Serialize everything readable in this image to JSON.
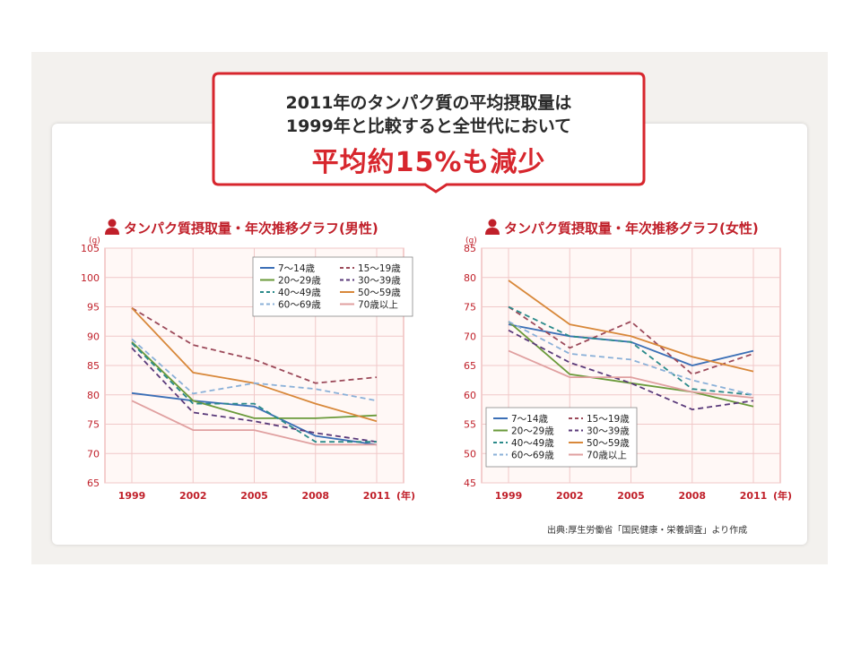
{
  "callout": {
    "line1": "2011年のタンパク質の平均摂取量は",
    "line2": "1999年と比較すると全世代において",
    "line3": "平均約15%も減少"
  },
  "charts_titles": {
    "male": "タンパク質摂取量・年次推移グラフ(男性)",
    "female": "タンパク質摂取量・年次推移グラフ(女性)"
  },
  "source": "出典:厚生労働省「国民健康・栄養調査」より作成",
  "chart_data": [
    {
      "type": "line",
      "title": "タンパク質摂取量・年次推移グラフ(男性)",
      "y_unit": "(g)",
      "x_unit": "(年)",
      "x": [
        1999,
        2002,
        2005,
        2008,
        2011
      ],
      "x_ticks": [
        "1999",
        "2002",
        "2005",
        "2008",
        "2011"
      ],
      "y_ticks": [
        65,
        70,
        75,
        80,
        85,
        90,
        95,
        100,
        105
      ],
      "ylim": [
        65,
        105
      ],
      "legend_position": "top-right",
      "series": [
        {
          "name": "7～14歳",
          "color": "#3b6fb6",
          "dash": "solid",
          "values": [
            80.3,
            79.0,
            78.0,
            73.0,
            71.5
          ]
        },
        {
          "name": "15～19歳",
          "color": "#9c4a5a",
          "dash": "dashed",
          "values": [
            94.8,
            88.5,
            86.0,
            82.0,
            83.0
          ]
        },
        {
          "name": "20～29歳",
          "color": "#6a9a3a",
          "dash": "solid",
          "values": [
            89.0,
            79.0,
            76.0,
            76.0,
            76.5
          ]
        },
        {
          "name": "30～39歳",
          "color": "#5a3a7a",
          "dash": "dashed",
          "values": [
            88.0,
            77.0,
            75.5,
            73.5,
            72.0
          ]
        },
        {
          "name": "40～49歳",
          "color": "#2a8a8a",
          "dash": "dashed",
          "values": [
            88.8,
            78.5,
            78.5,
            72.0,
            72.0
          ]
        },
        {
          "name": "50～59歳",
          "color": "#d8883a",
          "dash": "solid",
          "values": [
            94.8,
            83.8,
            82.0,
            78.5,
            75.5
          ]
        },
        {
          "name": "60～69歳",
          "color": "#8ab0d8",
          "dash": "dashed",
          "values": [
            89.5,
            80.2,
            82.0,
            81.0,
            79.0
          ]
        },
        {
          "name": "70歳以上",
          "color": "#e0a0a0",
          "dash": "solid",
          "values": [
            79.0,
            74.0,
            74.0,
            71.5,
            71.5
          ]
        }
      ]
    },
    {
      "type": "line",
      "title": "タンパク質摂取量・年次推移グラフ(女性)",
      "y_unit": "(g)",
      "x_unit": "(年)",
      "x": [
        1999,
        2002,
        2005,
        2008,
        2011
      ],
      "x_ticks": [
        "1999",
        "2002",
        "2005",
        "2008",
        "2011"
      ],
      "y_ticks": [
        45,
        50,
        55,
        60,
        65,
        70,
        75,
        80,
        85
      ],
      "ylim": [
        45,
        85
      ],
      "legend_position": "bottom-left",
      "series": [
        {
          "name": "7～14歳",
          "color": "#3b6fb6",
          "dash": "solid",
          "values": [
            72.0,
            70.0,
            69.0,
            65.0,
            67.5
          ]
        },
        {
          "name": "15～19歳",
          "color": "#9c4a5a",
          "dash": "dashed",
          "values": [
            75.0,
            68.0,
            72.5,
            63.5,
            67.0
          ]
        },
        {
          "name": "20～29歳",
          "color": "#6a9a3a",
          "dash": "solid",
          "values": [
            72.5,
            63.5,
            62.0,
            60.5,
            58.0
          ]
        },
        {
          "name": "30～39歳",
          "color": "#5a3a7a",
          "dash": "dashed",
          "values": [
            71.0,
            65.5,
            62.0,
            57.5,
            59.0
          ]
        },
        {
          "name": "40～49歳",
          "color": "#2a8a8a",
          "dash": "dashed",
          "values": [
            75.0,
            70.0,
            69.0,
            61.0,
            60.0
          ]
        },
        {
          "name": "50～59歳",
          "color": "#d8883a",
          "dash": "solid",
          "values": [
            79.5,
            72.0,
            70.0,
            66.5,
            64.0
          ]
        },
        {
          "name": "60～69歳",
          "color": "#8ab0d8",
          "dash": "dashed",
          "values": [
            72.5,
            67.0,
            66.0,
            62.5,
            60.0
          ]
        },
        {
          "name": "70歳以上",
          "color": "#e0a0a0",
          "dash": "solid",
          "values": [
            67.5,
            63.0,
            63.0,
            60.5,
            59.5
          ]
        }
      ]
    }
  ]
}
